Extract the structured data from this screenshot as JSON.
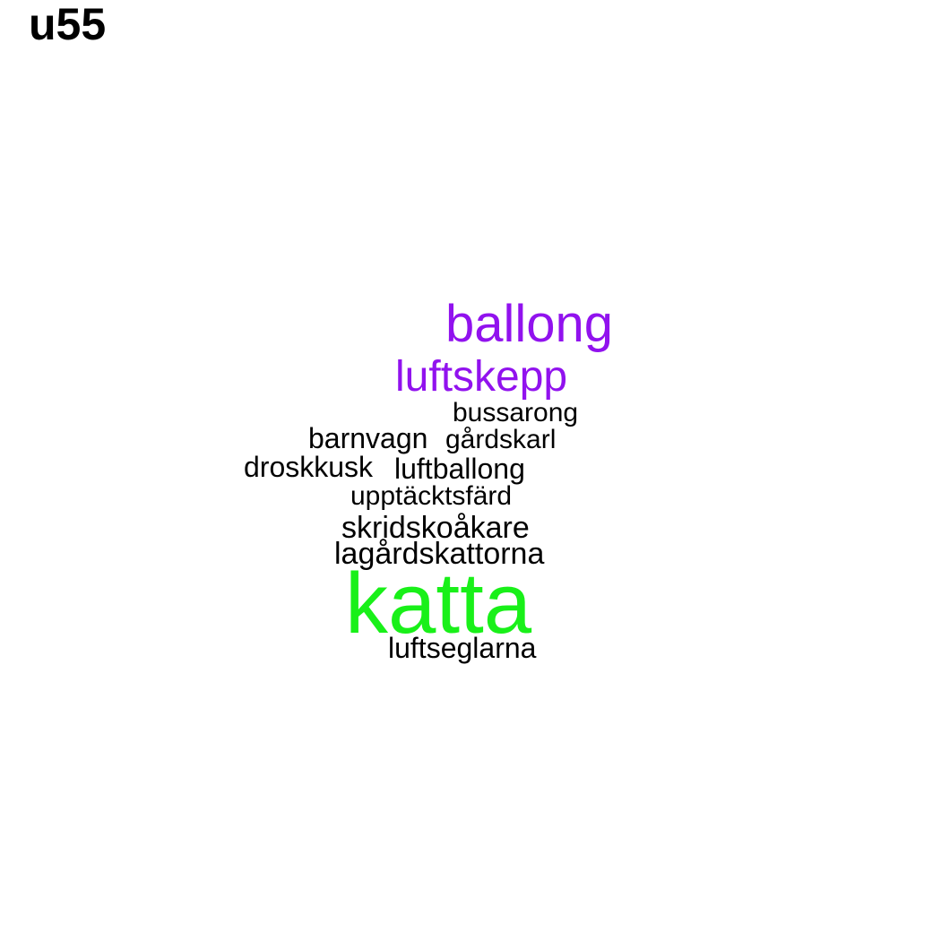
{
  "title": "u55",
  "colors": {
    "background": "#ffffff",
    "title": "#000000",
    "purple": "#9112ee",
    "black": "#000000",
    "green": "#19f019"
  },
  "words": [
    {
      "text": "ballong",
      "color": "#9112ee"
    },
    {
      "text": "luftskepp",
      "color": "#9112ee"
    },
    {
      "text": "bussarong",
      "color": "#000000"
    },
    {
      "text": "barnvagn",
      "color": "#000000"
    },
    {
      "text": "gårdskarl",
      "color": "#000000"
    },
    {
      "text": "droskkusk",
      "color": "#000000"
    },
    {
      "text": "luftballong",
      "color": "#000000"
    },
    {
      "text": "upptäcktsfärd",
      "color": "#000000"
    },
    {
      "text": "skridskoåkare",
      "color": "#000000"
    },
    {
      "text": "lagårdskattorna",
      "color": "#000000"
    },
    {
      "text": "katta",
      "color": "#19f019"
    },
    {
      "text": "luftseglarna",
      "color": "#000000"
    }
  ]
}
